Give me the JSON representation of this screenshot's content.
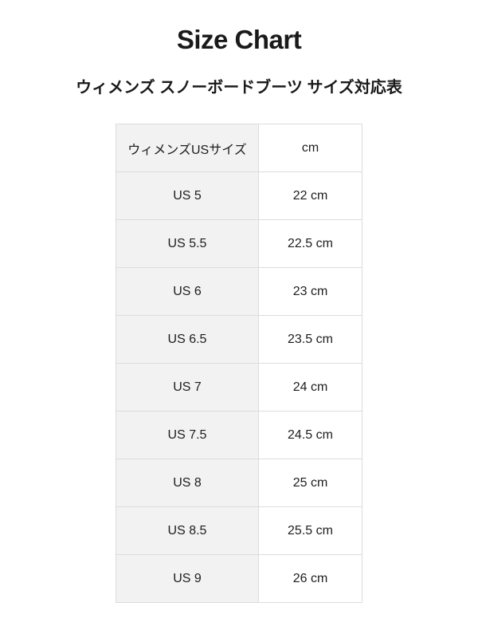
{
  "page": {
    "title": "Size Chart",
    "subtitle": "ウィメンズ スノーボードブーツ サイズ対応表"
  },
  "colors": {
    "text": "#1d1d1f",
    "table_border": "#dcdcdc",
    "size_column_background": "#f2f2f2",
    "cm_column_background": "#ffffff",
    "page_background": "#ffffff"
  },
  "chart_data": {
    "type": "table",
    "title": "Size Chart",
    "subtitle": "ウィメンズ スノーボードブーツ サイズ対応表",
    "columns": [
      "ウィメンズUSサイズ",
      "cm"
    ],
    "rows": [
      [
        "US 5",
        "22 cm"
      ],
      [
        "US 5.5",
        "22.5 cm"
      ],
      [
        "US 6",
        "23 cm"
      ],
      [
        "US 6.5",
        "23.5 cm"
      ],
      [
        "US 7",
        "24 cm"
      ],
      [
        "US 7.5",
        "24.5 cm"
      ],
      [
        "US 8",
        "25 cm"
      ],
      [
        "US 8.5",
        "25.5 cm"
      ],
      [
        "US 9",
        "26 cm"
      ]
    ]
  }
}
